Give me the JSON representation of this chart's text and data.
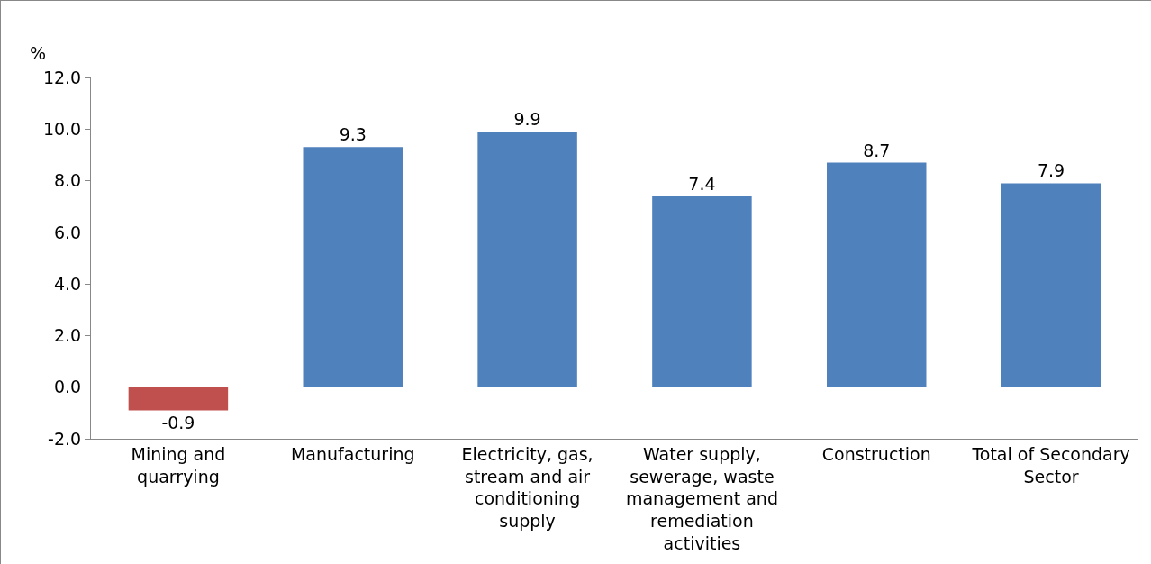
{
  "chart_data": {
    "type": "bar",
    "ylabel": "%",
    "categories": [
      "Mining and quarrying",
      "Manufacturing",
      "Electricity, gas, stream and air conditioning supply",
      "Water supply, sewerage, waste management and remediation activities",
      "Construction",
      "Total of Secondary Sector"
    ],
    "values": [
      -0.9,
      9.3,
      9.9,
      7.4,
      8.7,
      7.9
    ],
    "colors": [
      "#c0504d",
      "#4f81bd",
      "#4f81bd",
      "#4f81bd",
      "#4f81bd",
      "#4f81bd"
    ],
    "data_labels": true,
    "ylim": [
      -2,
      12
    ],
    "yticks": [
      {
        "value": -2,
        "label": "-2.0"
      },
      {
        "value": 0,
        "label": "0.0"
      },
      {
        "value": 2,
        "label": "2.0"
      },
      {
        "value": 4,
        "label": "4.0"
      },
      {
        "value": 6,
        "label": "6.0"
      },
      {
        "value": 8,
        "label": "8.0"
      },
      {
        "value": 10,
        "label": "10.0"
      },
      {
        "value": 12,
        "label": "12.0"
      }
    ],
    "legend": false
  }
}
